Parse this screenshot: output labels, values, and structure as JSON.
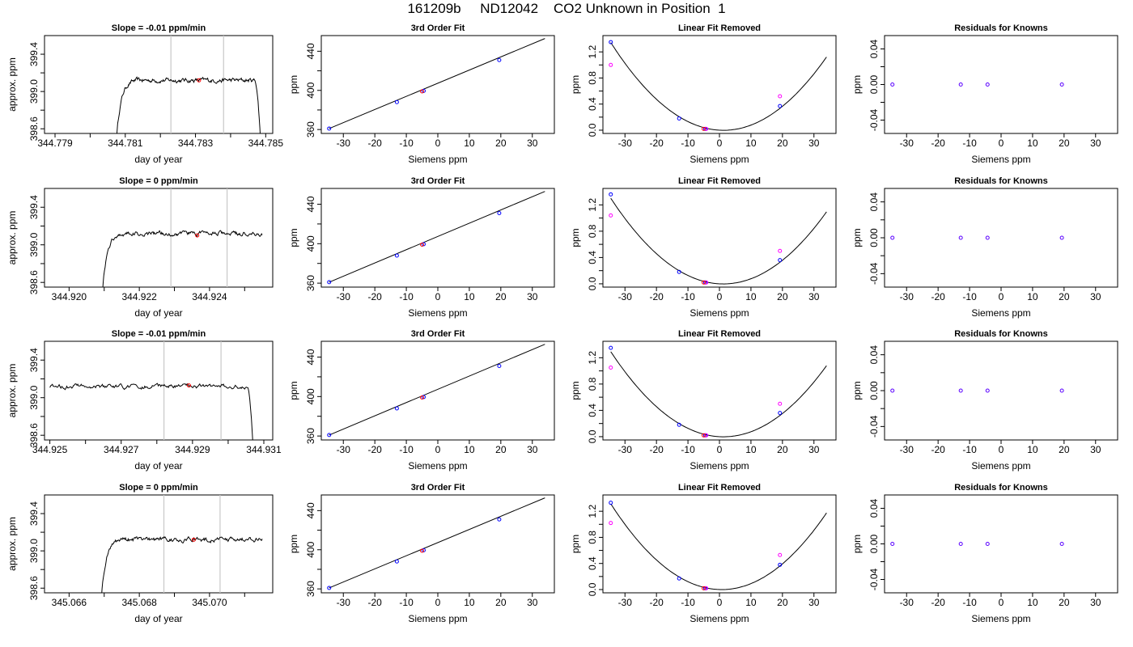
{
  "page": {
    "title": "161209b     ND12042    CO2 Unknown in Position  1"
  },
  "colors": {
    "trace": "#000000",
    "gray_marker": "#c8c8c8",
    "known_point": "#0000ff",
    "unknown_point": "#ff0000",
    "linear_removed_point": "#ff00ff",
    "residual_point": "#5a00ff"
  },
  "chart_data": [
    {
      "type": "line",
      "row": 0,
      "col": 0,
      "title": "Slope =  -0.01  ppm/min",
      "xlabel": "day of year",
      "ylabel": "approx. ppm",
      "xlim": [
        344.7787,
        344.7852
      ],
      "ylim": [
        398.55,
        399.6
      ],
      "xticks": [
        344.779,
        344.781,
        344.783,
        344.785
      ],
      "xtick_labels": [
        "344.779",
        "344.781",
        "344.783",
        "344.785"
      ],
      "xminor": [
        344.78,
        344.782,
        344.784
      ],
      "yticks": [
        398.6,
        399.0,
        399.4
      ],
      "ytick_labels": [
        "398.6",
        "399.0",
        "399.4"
      ],
      "yminor": [
        398.8,
        399.2
      ],
      "vlines": [
        344.7823,
        344.7838
      ],
      "signal": {
        "x_rise": 344.78075,
        "x_start": 344.78075,
        "x_end": 344.78485,
        "x_fall": 344.7847,
        "plateau": 399.12,
        "start_value": 398.5,
        "end_value": 398.5
      },
      "marker": {
        "x": 344.7831,
        "y": 399.12
      }
    },
    {
      "type": "line",
      "row": 0,
      "col": 1,
      "title": "3rd Order Fit",
      "xlabel": "Siemens ppm",
      "ylabel": "ppm",
      "xlim": [
        -37,
        37
      ],
      "ylim": [
        356,
        456
      ],
      "xticks": [
        -30,
        -20,
        -10,
        0,
        10,
        20,
        30
      ],
      "xtick_labels": [
        "-30",
        "-20",
        "-10",
        "0",
        "10",
        "20",
        "30"
      ],
      "yticks": [
        360,
        400,
        440
      ],
      "ytick_labels": [
        "360",
        "400",
        "440"
      ],
      "yminor": [
        380,
        420
      ],
      "fit_line": {
        "x": [
          -34.5,
          34
        ],
        "y": [
          361,
          453
        ]
      },
      "known": [
        {
          "x": -34.5,
          "y": 361
        },
        {
          "x": -13,
          "y": 388
        },
        {
          "x": -4.5,
          "y": 399.5
        },
        {
          "x": 19.5,
          "y": 431
        }
      ],
      "unknown": [
        {
          "x": -5,
          "y": 399
        }
      ]
    },
    {
      "type": "line",
      "row": 0,
      "col": 2,
      "title": "Linear Fit Removed",
      "xlabel": "Siemens ppm",
      "ylabel": "ppm",
      "xlim": [
        -37,
        37
      ],
      "ylim": [
        -0.05,
        1.45
      ],
      "xticks": [
        -30,
        -20,
        -10,
        0,
        10,
        20,
        30
      ],
      "xtick_labels": [
        "-30",
        "-20",
        "-10",
        "0",
        "10",
        "20",
        "30"
      ],
      "yticks": [
        0,
        0.4,
        0.8,
        1.2
      ],
      "ytick_labels": [
        "0.0",
        "0.4",
        "0.8",
        "1.2"
      ],
      "yminor": [
        0.2,
        0.6,
        1.0
      ],
      "curve": {
        "a": 0.00105,
        "b": -0.0027,
        "x_from": -34.5,
        "x_to": 34
      },
      "known": [
        {
          "x": -34.5,
          "y": 1.35
        },
        {
          "x": -12.8,
          "y": 0.18
        },
        {
          "x": -4.5,
          "y": 0.02
        },
        {
          "x": 19.2,
          "y": 0.37
        }
      ],
      "linear_removed": [
        {
          "x": -34.5,
          "y": 1.0
        },
        {
          "x": -4.2,
          "y": 0.02
        },
        {
          "x": 19.2,
          "y": 0.52
        }
      ],
      "unknown": [
        {
          "x": -5,
          "y": 0.02
        }
      ]
    },
    {
      "type": "scatter",
      "row": 0,
      "col": 3,
      "title": "Residuals for Knowns",
      "xlabel": "Siemens ppm",
      "ylabel": "ppm",
      "xlim": [
        -37,
        37
      ],
      "ylim": [
        -0.055,
        0.055
      ],
      "xticks": [
        -30,
        -20,
        -10,
        0,
        10,
        20,
        30
      ],
      "xtick_labels": [
        "-30",
        "-20",
        "-10",
        "0",
        "10",
        "20",
        "30"
      ],
      "yticks": [
        -0.04,
        0,
        0.04
      ],
      "ytick_labels": [
        "-0.04",
        "0.00",
        "0.04"
      ],
      "yminor": [
        -0.02,
        0.02
      ],
      "points": [
        {
          "x": -34.5,
          "y": 0
        },
        {
          "x": -12.8,
          "y": 0
        },
        {
          "x": -4.3,
          "y": 0
        },
        {
          "x": 19.3,
          "y": 0
        }
      ]
    },
    {
      "type": "line",
      "row": 1,
      "col": 0,
      "title": "Slope =  0  ppm/min",
      "xlabel": "day of year",
      "ylabel": "approx. ppm",
      "xlim": [
        344.9193,
        344.9258
      ],
      "ylim": [
        398.55,
        399.6
      ],
      "xticks": [
        344.92,
        344.922,
        344.924
      ],
      "xtick_labels": [
        "344.920",
        "344.922",
        "344.924"
      ],
      "xminor": [
        344.921,
        344.923,
        344.925
      ],
      "yticks": [
        398.6,
        399.0,
        399.4
      ],
      "ytick_labels": [
        "398.6",
        "399.0",
        "399.4"
      ],
      "yminor": [
        398.8,
        399.2
      ],
      "vlines": [
        344.9229,
        344.9245
      ],
      "signal": {
        "x_rise": 344.92095,
        "x_start": 344.92095,
        "x_end": 344.9255,
        "x_fall": 344.9262,
        "plateau": 399.12,
        "start_value": 398.5,
        "end_value": 399.12
      },
      "marker": {
        "x": 344.92365,
        "y": 399.1
      }
    },
    {
      "type": "line",
      "row": 1,
      "col": 1,
      "title": "3rd Order Fit",
      "xlabel": "Siemens ppm",
      "ylabel": "ppm",
      "xlim": [
        -37,
        37
      ],
      "ylim": [
        356,
        456
      ],
      "xticks": [
        -30,
        -20,
        -10,
        0,
        10,
        20,
        30
      ],
      "xtick_labels": [
        "-30",
        "-20",
        "-10",
        "0",
        "10",
        "20",
        "30"
      ],
      "yticks": [
        360,
        400,
        440
      ],
      "ytick_labels": [
        "360",
        "400",
        "440"
      ],
      "yminor": [
        380,
        420
      ],
      "fit_line": {
        "x": [
          -34.5,
          34
        ],
        "y": [
          361,
          453
        ]
      },
      "known": [
        {
          "x": -34.5,
          "y": 361
        },
        {
          "x": -13,
          "y": 388
        },
        {
          "x": -4.5,
          "y": 399.5
        },
        {
          "x": 19.5,
          "y": 431
        }
      ],
      "unknown": [
        {
          "x": -5,
          "y": 399
        }
      ]
    },
    {
      "type": "line",
      "row": 1,
      "col": 2,
      "title": "Linear Fit Removed",
      "xlabel": "Siemens ppm",
      "ylabel": "ppm",
      "xlim": [
        -37,
        37
      ],
      "ylim": [
        -0.05,
        1.45
      ],
      "xticks": [
        -30,
        -20,
        -10,
        0,
        10,
        20,
        30
      ],
      "xtick_labels": [
        "-30",
        "-20",
        "-10",
        "0",
        "10",
        "20",
        "30"
      ],
      "yticks": [
        0,
        0.4,
        0.8,
        1.2
      ],
      "ytick_labels": [
        "0.0",
        "0.4",
        "0.8",
        "1.2"
      ],
      "yminor": [
        0.2,
        0.6,
        1.0
      ],
      "curve": {
        "a": 0.00102,
        "b": -0.0025,
        "x_from": -34.5,
        "x_to": 34
      },
      "known": [
        {
          "x": -34.5,
          "y": 1.36
        },
        {
          "x": -12.8,
          "y": 0.18
        },
        {
          "x": -4.5,
          "y": 0.02
        },
        {
          "x": 19.2,
          "y": 0.36
        }
      ],
      "linear_removed": [
        {
          "x": -34.5,
          "y": 1.04
        },
        {
          "x": -4.2,
          "y": 0.02
        },
        {
          "x": 19.2,
          "y": 0.5
        }
      ],
      "unknown": [
        {
          "x": -5,
          "y": 0.02
        }
      ]
    },
    {
      "type": "scatter",
      "row": 1,
      "col": 3,
      "title": "Residuals for Knowns",
      "xlabel": "Siemens ppm",
      "ylabel": "ppm",
      "xlim": [
        -37,
        37
      ],
      "ylim": [
        -0.055,
        0.055
      ],
      "xticks": [
        -30,
        -20,
        -10,
        0,
        10,
        20,
        30
      ],
      "xtick_labels": [
        "-30",
        "-20",
        "-10",
        "0",
        "10",
        "20",
        "30"
      ],
      "yticks": [
        -0.04,
        0,
        0.04
      ],
      "ytick_labels": [
        "-0.04",
        "0.00",
        "0.04"
      ],
      "yminor": [
        -0.02,
        0.02
      ],
      "points": [
        {
          "x": -34.5,
          "y": 0
        },
        {
          "x": -12.8,
          "y": 0
        },
        {
          "x": -4.3,
          "y": 0
        },
        {
          "x": 19.3,
          "y": 0
        }
      ]
    },
    {
      "type": "line",
      "row": 2,
      "col": 0,
      "title": "Slope =  -0.01  ppm/min",
      "xlabel": "day of year",
      "ylabel": "approx. ppm",
      "xlim": [
        344.92485,
        344.93125
      ],
      "ylim": [
        398.55,
        399.6
      ],
      "xticks": [
        344.925,
        344.927,
        344.929,
        344.931
      ],
      "xtick_labels": [
        "344.925",
        "344.927",
        "344.929",
        "344.931"
      ],
      "xminor": [
        344.926,
        344.928,
        344.93
      ],
      "yticks": [
        398.6,
        399.0,
        399.4
      ],
      "ytick_labels": [
        "398.6",
        "399.0",
        "399.4"
      ],
      "yminor": [
        398.8,
        399.2
      ],
      "vlines": [
        344.9282,
        344.9298
      ],
      "signal": {
        "x_rise": 344.925,
        "x_start": 344.925,
        "x_end": 344.9307,
        "x_fall": 344.93055,
        "plateau": 399.12,
        "start_value": 399.12,
        "end_value": 398.5
      },
      "marker": {
        "x": 344.9289,
        "y": 399.13
      }
    },
    {
      "type": "line",
      "row": 2,
      "col": 1,
      "title": "3rd Order Fit",
      "xlabel": "Siemens ppm",
      "ylabel": "ppm",
      "xlim": [
        -37,
        37
      ],
      "ylim": [
        356,
        456
      ],
      "xticks": [
        -30,
        -20,
        -10,
        0,
        10,
        20,
        30
      ],
      "xtick_labels": [
        "-30",
        "-20",
        "-10",
        "0",
        "10",
        "20",
        "30"
      ],
      "yticks": [
        360,
        400,
        440
      ],
      "ytick_labels": [
        "360",
        "400",
        "440"
      ],
      "yminor": [
        380,
        420
      ],
      "fit_line": {
        "x": [
          -34.5,
          34
        ],
        "y": [
          361,
          453
        ]
      },
      "known": [
        {
          "x": -34.5,
          "y": 361
        },
        {
          "x": -13,
          "y": 388
        },
        {
          "x": -4.5,
          "y": 399.5
        },
        {
          "x": 19.5,
          "y": 431
        }
      ],
      "unknown": [
        {
          "x": -5,
          "y": 399
        }
      ]
    },
    {
      "type": "line",
      "row": 2,
      "col": 2,
      "title": "Linear Fit Removed",
      "xlabel": "Siemens ppm",
      "ylabel": "ppm",
      "xlim": [
        -37,
        37
      ],
      "ylim": [
        -0.05,
        1.45
      ],
      "xticks": [
        -30,
        -20,
        -10,
        0,
        10,
        20,
        30
      ],
      "xtick_labels": [
        "-30",
        "-20",
        "-10",
        "0",
        "10",
        "20",
        "30"
      ],
      "yticks": [
        0,
        0.4,
        0.8,
        1.2
      ],
      "ytick_labels": [
        "0.0",
        "0.4",
        "0.8",
        "1.2"
      ],
      "yminor": [
        0.2,
        0.6,
        1.0
      ],
      "curve": {
        "a": 0.00101,
        "b": -0.0026,
        "x_from": -34.5,
        "x_to": 34
      },
      "known": [
        {
          "x": -34.5,
          "y": 1.35
        },
        {
          "x": -12.8,
          "y": 0.18
        },
        {
          "x": -4.5,
          "y": 0.02
        },
        {
          "x": 19.2,
          "y": 0.36
        }
      ],
      "linear_removed": [
        {
          "x": -34.5,
          "y": 1.05
        },
        {
          "x": -4.2,
          "y": 0.02
        },
        {
          "x": 19.2,
          "y": 0.5
        }
      ],
      "unknown": [
        {
          "x": -5,
          "y": 0.02
        }
      ]
    },
    {
      "type": "scatter",
      "row": 2,
      "col": 3,
      "title": "Residuals for Knowns",
      "xlabel": "Siemens ppm",
      "ylabel": "ppm",
      "xlim": [
        -37,
        37
      ],
      "ylim": [
        -0.055,
        0.055
      ],
      "xticks": [
        -30,
        -20,
        -10,
        0,
        10,
        20,
        30
      ],
      "xtick_labels": [
        "-30",
        "-20",
        "-10",
        "0",
        "10",
        "20",
        "30"
      ],
      "yticks": [
        -0.04,
        0,
        0.04
      ],
      "ytick_labels": [
        "-0.04",
        "0.00",
        "0.04"
      ],
      "yminor": [
        -0.02,
        0.02
      ],
      "points": [
        {
          "x": -34.5,
          "y": 0
        },
        {
          "x": -12.8,
          "y": 0
        },
        {
          "x": -4.3,
          "y": 0
        },
        {
          "x": 19.3,
          "y": 0
        }
      ]
    },
    {
      "type": "line",
      "row": 3,
      "col": 0,
      "title": "Slope =  0  ppm/min",
      "xlabel": "day of year",
      "ylabel": "approx. ppm",
      "xlim": [
        345.0653,
        345.0718
      ],
      "ylim": [
        398.55,
        399.6
      ],
      "xticks": [
        345.066,
        345.068,
        345.07
      ],
      "xtick_labels": [
        "345.066",
        "345.068",
        "345.070"
      ],
      "xminor": [
        345.067,
        345.069,
        345.071
      ],
      "yticks": [
        398.6,
        399.0,
        399.4
      ],
      "ytick_labels": [
        "398.6",
        "399.0",
        "399.4"
      ],
      "yminor": [
        398.8,
        399.2
      ],
      "vlines": [
        345.0687,
        345.0703
      ],
      "signal": {
        "x_rise": 345.06692,
        "x_start": 345.06692,
        "x_end": 345.0715,
        "x_fall": 345.0725,
        "plateau": 399.12,
        "start_value": 398.5,
        "end_value": 399.13
      },
      "marker": {
        "x": 345.06955,
        "y": 399.12
      }
    },
    {
      "type": "line",
      "row": 3,
      "col": 1,
      "title": "3rd Order Fit",
      "xlabel": "Siemens ppm",
      "ylabel": "ppm",
      "xlim": [
        -37,
        37
      ],
      "ylim": [
        356,
        456
      ],
      "xticks": [
        -30,
        -20,
        -10,
        0,
        10,
        20,
        30
      ],
      "xtick_labels": [
        "-30",
        "-20",
        "-10",
        "0",
        "10",
        "20",
        "30"
      ],
      "yticks": [
        360,
        400,
        440
      ],
      "ytick_labels": [
        "360",
        "400",
        "440"
      ],
      "yminor": [
        380,
        420
      ],
      "fit_line": {
        "x": [
          -34.5,
          34
        ],
        "y": [
          361,
          453
        ]
      },
      "known": [
        {
          "x": -34.5,
          "y": 361
        },
        {
          "x": -13,
          "y": 388
        },
        {
          "x": -4.5,
          "y": 399.5
        },
        {
          "x": 19.5,
          "y": 431
        }
      ],
      "unknown": [
        {
          "x": -5,
          "y": 399
        }
      ]
    },
    {
      "type": "line",
      "row": 3,
      "col": 2,
      "title": "Linear Fit Removed",
      "xlabel": "Siemens ppm",
      "ylabel": "ppm",
      "xlim": [
        -37,
        37
      ],
      "ylim": [
        -0.05,
        1.45
      ],
      "xticks": [
        -30,
        -20,
        -10,
        0,
        10,
        20,
        30
      ],
      "xtick_labels": [
        "-30",
        "-20",
        "-10",
        "0",
        "10",
        "20",
        "30"
      ],
      "yticks": [
        0,
        0.4,
        0.8,
        1.2
      ],
      "ytick_labels": [
        "0.0",
        "0.4",
        "0.8",
        "1.2"
      ],
      "yminor": [
        0.2,
        0.6,
        1.0
      ],
      "curve": {
        "a": 0.00106,
        "b": -0.0015,
        "x_from": -34.5,
        "x_to": 34
      },
      "known": [
        {
          "x": -34.5,
          "y": 1.33
        },
        {
          "x": -12.8,
          "y": 0.17
        },
        {
          "x": -4.5,
          "y": 0.02
        },
        {
          "x": 19.2,
          "y": 0.38
        }
      ],
      "linear_removed": [
        {
          "x": -34.5,
          "y": 1.02
        },
        {
          "x": -4.2,
          "y": 0.02
        },
        {
          "x": 19.2,
          "y": 0.53
        }
      ],
      "unknown": [
        {
          "x": -5,
          "y": 0.02
        }
      ]
    },
    {
      "type": "scatter",
      "row": 3,
      "col": 3,
      "title": "Residuals for Knowns",
      "xlabel": "Siemens ppm",
      "ylabel": "ppm",
      "xlim": [
        -37,
        37
      ],
      "ylim": [
        -0.055,
        0.055
      ],
      "xticks": [
        -30,
        -20,
        -10,
        0,
        10,
        20,
        30
      ],
      "xtick_labels": [
        "-30",
        "-20",
        "-10",
        "0",
        "10",
        "20",
        "30"
      ],
      "yticks": [
        -0.04,
        0,
        0.04
      ],
      "ytick_labels": [
        "-0.04",
        "0.00",
        "0.04"
      ],
      "yminor": [
        -0.02,
        0.02
      ],
      "points": [
        {
          "x": -34.5,
          "y": 0
        },
        {
          "x": -12.8,
          "y": 0
        },
        {
          "x": -4.3,
          "y": 0
        },
        {
          "x": 19.3,
          "y": 0
        }
      ]
    }
  ]
}
